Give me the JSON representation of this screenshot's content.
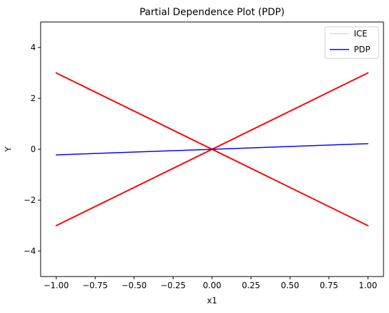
{
  "chart_data": {
    "type": "line",
    "title": "Partial Dependence Plot (PDP)",
    "xlabel": "x1",
    "ylabel": "Y",
    "xlim": [
      -1.1,
      1.1
    ],
    "ylim": [
      -5,
      5
    ],
    "grid": false,
    "legend_position": "top-right",
    "x_ticks": [
      -1.0,
      -0.75,
      -0.5,
      -0.25,
      0.0,
      0.25,
      0.5,
      0.75,
      1.0
    ],
    "x_tick_labels": [
      "−1.00",
      "−0.75",
      "−0.50",
      "−0.25",
      "0.00",
      "0.25",
      "0.50",
      "0.75",
      "1.00"
    ],
    "y_ticks": [
      -4,
      -2,
      0,
      2,
      4
    ],
    "y_tick_labels": [
      "−4",
      "−2",
      "0",
      "2",
      "4"
    ],
    "series": [
      {
        "name": "ICE",
        "color": "#ff0000",
        "legend_color": "#ffcccc",
        "lines": [
          {
            "x": [
              -1.0,
              1.0
            ],
            "y": [
              3.0,
              -3.0
            ]
          },
          {
            "x": [
              -1.0,
              1.0
            ],
            "y": [
              -3.0,
              3.0
            ]
          }
        ]
      },
      {
        "name": "PDP",
        "color": "#0000ff",
        "lines": [
          {
            "x": [
              -1.0,
              1.0
            ],
            "y": [
              -0.22,
              0.22
            ]
          }
        ]
      }
    ]
  }
}
